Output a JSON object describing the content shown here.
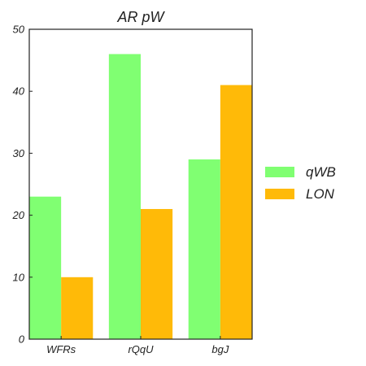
{
  "chart_data": {
    "type": "bar",
    "title": "AR pW",
    "xlabel": "",
    "ylabel": "",
    "categories": [
      "WFRs",
      "rQqU",
      "bgJ"
    ],
    "series": [
      {
        "name": "qWB",
        "values": [
          23,
          46,
          29
        ],
        "color": "#80ff72"
      },
      {
        "name": "LON",
        "values": [
          10,
          21,
          41
        ],
        "color": "#ffba08"
      }
    ],
    "ylim": [
      0,
      50
    ],
    "yticks": [
      0,
      10,
      20,
      30,
      40,
      50
    ],
    "grid": false,
    "legend_position": "right"
  }
}
